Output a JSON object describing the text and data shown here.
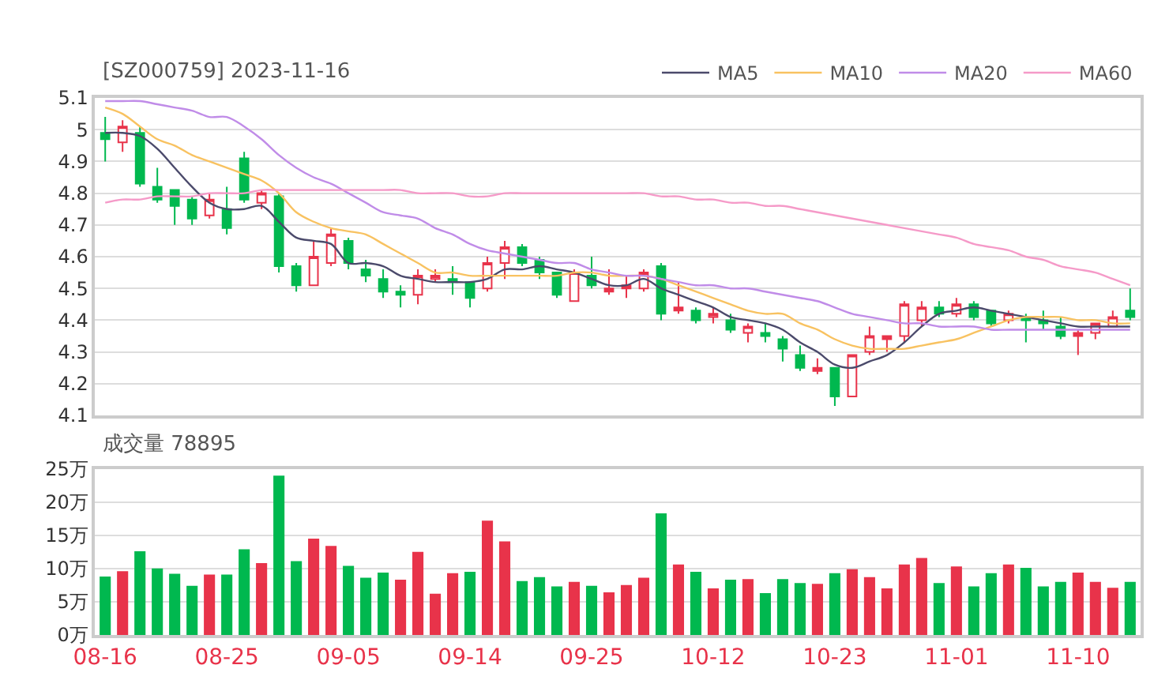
{
  "chart_data": [
    {
      "type": "candlestick",
      "title": "[SZ000759] 2023-11-16",
      "legend": "top right",
      "grid": "y",
      "tick_labels": "y",
      "categories": [
        null,
        null,
        null,
        null,
        null,
        null,
        null,
        null,
        null,
        null,
        null,
        null,
        null,
        null,
        null,
        null,
        null,
        null,
        null,
        null,
        null,
        null,
        null,
        null,
        null,
        null,
        null,
        null,
        null,
        null,
        null,
        null,
        null,
        null,
        null,
        null,
        null,
        null,
        null,
        null,
        null,
        null,
        null,
        null,
        null,
        null,
        null,
        null,
        null,
        null,
        null,
        null,
        null,
        null,
        null,
        null,
        null,
        null,
        null,
        null
      ],
      "ylim": [
        4.1,
        5.1
      ],
      "yticks": [
        4.1,
        4.2,
        4.3,
        4.4,
        4.5,
        4.6,
        4.7,
        4.8,
        4.9,
        5,
        5.1
      ],
      "ohlc": [
        [
          4.99,
          5.04,
          4.9,
          4.97
        ],
        [
          4.96,
          5.03,
          4.93,
          5.01
        ],
        [
          4.99,
          5.01,
          4.82,
          4.83
        ],
        [
          4.82,
          4.88,
          4.77,
          4.78
        ],
        [
          4.81,
          4.81,
          4.7,
          4.76
        ],
        [
          4.78,
          4.79,
          4.7,
          4.72
        ],
        [
          4.73,
          4.8,
          4.72,
          4.78
        ],
        [
          4.75,
          4.82,
          4.67,
          4.69
        ],
        [
          4.91,
          4.93,
          4.77,
          4.78
        ],
        [
          4.77,
          4.81,
          4.75,
          4.8
        ],
        [
          4.79,
          4.8,
          4.55,
          4.57
        ],
        [
          4.57,
          4.58,
          4.49,
          4.51
        ],
        [
          4.51,
          4.65,
          4.51,
          4.6
        ],
        [
          4.58,
          4.69,
          4.57,
          4.67
        ],
        [
          4.65,
          4.66,
          4.56,
          4.58
        ],
        [
          4.56,
          4.59,
          4.52,
          4.54
        ],
        [
          4.53,
          4.56,
          4.47,
          4.49
        ],
        [
          4.49,
          4.51,
          4.44,
          4.48
        ],
        [
          4.48,
          4.56,
          4.45,
          4.54
        ],
        [
          4.53,
          4.56,
          4.52,
          4.54
        ],
        [
          4.53,
          4.57,
          4.48,
          4.52
        ],
        [
          4.52,
          4.52,
          4.44,
          4.47
        ],
        [
          4.5,
          4.6,
          4.49,
          4.58
        ],
        [
          4.58,
          4.65,
          4.53,
          4.63
        ],
        [
          4.63,
          4.64,
          4.57,
          4.58
        ],
        [
          4.59,
          4.6,
          4.53,
          4.55
        ],
        [
          4.55,
          4.55,
          4.47,
          4.48
        ],
        [
          4.46,
          4.56,
          4.46,
          4.55
        ],
        [
          4.54,
          4.6,
          4.5,
          4.51
        ],
        [
          4.49,
          4.56,
          4.48,
          4.5
        ],
        [
          4.5,
          4.54,
          4.47,
          4.51
        ],
        [
          4.5,
          4.56,
          4.49,
          4.55
        ],
        [
          4.57,
          4.58,
          4.4,
          4.42
        ],
        [
          4.43,
          4.52,
          4.42,
          4.44
        ],
        [
          4.43,
          4.44,
          4.39,
          4.4
        ],
        [
          4.41,
          4.44,
          4.39,
          4.42
        ],
        [
          4.4,
          4.42,
          4.36,
          4.37
        ],
        [
          4.36,
          4.39,
          4.33,
          4.38
        ],
        [
          4.36,
          4.39,
          4.33,
          4.35
        ],
        [
          4.34,
          4.35,
          4.27,
          4.31
        ],
        [
          4.29,
          4.32,
          4.24,
          4.25
        ],
        [
          4.24,
          4.28,
          4.23,
          4.25
        ],
        [
          4.25,
          4.25,
          4.13,
          4.16
        ],
        [
          4.16,
          4.29,
          4.16,
          4.29
        ],
        [
          4.3,
          4.38,
          4.29,
          4.35
        ],
        [
          4.34,
          4.35,
          4.3,
          4.35
        ],
        [
          4.35,
          4.46,
          4.33,
          4.45
        ],
        [
          4.4,
          4.46,
          4.38,
          4.44
        ],
        [
          4.44,
          4.46,
          4.41,
          4.42
        ],
        [
          4.42,
          4.47,
          4.41,
          4.45
        ],
        [
          4.45,
          4.46,
          4.4,
          4.41
        ],
        [
          4.43,
          4.43,
          4.38,
          4.39
        ],
        [
          4.4,
          4.43,
          4.39,
          4.42
        ],
        [
          4.41,
          4.42,
          4.33,
          4.4
        ],
        [
          4.4,
          4.43,
          4.37,
          4.39
        ],
        [
          4.38,
          4.41,
          4.34,
          4.35
        ],
        [
          4.35,
          4.37,
          4.29,
          4.36
        ],
        [
          4.36,
          4.39,
          4.34,
          4.39
        ],
        [
          4.38,
          4.43,
          4.38,
          4.41
        ],
        [
          4.43,
          4.5,
          4.4,
          4.41
        ]
      ],
      "series": [
        {
          "name": "MA5",
          "type": "line",
          "color": "#4b4a6b",
          "values": [
            4.99,
            4.99,
            4.98,
            4.94,
            4.88,
            4.82,
            4.77,
            4.75,
            4.75,
            4.76,
            4.71,
            4.66,
            4.65,
            4.64,
            4.58,
            4.58,
            4.57,
            4.54,
            4.53,
            4.52,
            4.52,
            4.52,
            4.53,
            4.56,
            4.56,
            4.57,
            4.56,
            4.55,
            4.53,
            4.51,
            4.51,
            4.53,
            4.5,
            4.48,
            4.46,
            4.44,
            4.41,
            4.4,
            4.39,
            4.37,
            4.33,
            4.3,
            4.26,
            4.25,
            4.27,
            4.29,
            4.33,
            4.38,
            4.42,
            4.43,
            4.44,
            4.43,
            4.42,
            4.41,
            4.4,
            4.39,
            4.38,
            4.38,
            4.38,
            4.38
          ]
        },
        {
          "name": "MA10",
          "type": "line",
          "color": "#f8c261",
          "values": [
            5.07,
            5.05,
            5.01,
            4.97,
            4.95,
            4.92,
            4.9,
            4.88,
            4.86,
            4.84,
            4.8,
            4.74,
            4.71,
            4.69,
            4.68,
            4.67,
            4.64,
            4.61,
            4.58,
            4.55,
            4.55,
            4.54,
            4.54,
            4.54,
            4.54,
            4.54,
            4.54,
            4.55,
            4.55,
            4.54,
            4.54,
            4.54,
            4.53,
            4.51,
            4.49,
            4.47,
            4.45,
            4.43,
            4.42,
            4.42,
            4.39,
            4.37,
            4.34,
            4.32,
            4.31,
            4.31,
            4.31,
            4.32,
            4.33,
            4.34,
            4.36,
            4.38,
            4.4,
            4.41,
            4.41,
            4.41,
            4.4,
            4.4,
            4.39,
            4.39
          ]
        },
        {
          "name": "MA20",
          "type": "line",
          "color": "#c08ce8",
          "values": [
            5.09,
            5.09,
            5.09,
            5.08,
            5.07,
            5.06,
            5.04,
            5.04,
            5.01,
            4.97,
            4.92,
            4.88,
            4.85,
            4.83,
            4.8,
            4.77,
            4.74,
            4.73,
            4.72,
            4.69,
            4.67,
            4.64,
            4.62,
            4.61,
            4.6,
            4.59,
            4.58,
            4.58,
            4.56,
            4.55,
            4.54,
            4.54,
            4.53,
            4.52,
            4.51,
            4.51,
            4.5,
            4.5,
            4.49,
            4.48,
            4.47,
            4.46,
            4.44,
            4.42,
            4.41,
            4.4,
            4.39,
            4.39,
            4.38,
            4.38,
            4.38,
            4.37,
            4.37,
            4.37,
            4.37,
            4.37,
            4.37,
            4.37,
            4.37,
            4.37
          ]
        },
        {
          "name": "MA60",
          "type": "line",
          "color": "#f59ac8",
          "values": [
            4.77,
            4.78,
            4.78,
            4.79,
            4.79,
            4.79,
            4.8,
            4.8,
            4.8,
            4.81,
            4.81,
            4.81,
            4.81,
            4.81,
            4.81,
            4.81,
            4.81,
            4.81,
            4.8,
            4.8,
            4.8,
            4.79,
            4.79,
            4.8,
            4.8,
            4.8,
            4.8,
            4.8,
            4.8,
            4.8,
            4.8,
            4.8,
            4.79,
            4.79,
            4.78,
            4.78,
            4.77,
            4.77,
            4.76,
            4.76,
            4.75,
            4.74,
            4.73,
            4.72,
            4.71,
            4.7,
            4.69,
            4.68,
            4.67,
            4.66,
            4.64,
            4.63,
            4.62,
            4.6,
            4.59,
            4.57,
            4.56,
            4.55,
            4.53,
            4.51
          ]
        }
      ]
    },
    {
      "type": "bar",
      "title": "成交量 78895",
      "grid": "y",
      "categories": [
        "08-16",
        null,
        null,
        null,
        null,
        null,
        null,
        "08-25",
        null,
        null,
        null,
        null,
        null,
        null,
        "09-05",
        null,
        null,
        null,
        null,
        null,
        null,
        "09-14",
        null,
        null,
        null,
        null,
        null,
        null,
        "09-25",
        null,
        null,
        null,
        null,
        null,
        null,
        "10-12",
        null,
        null,
        null,
        null,
        null,
        null,
        "10-23",
        null,
        null,
        null,
        null,
        null,
        null,
        "11-01",
        null,
        null,
        null,
        null,
        null,
        null,
        "11-10",
        null,
        null,
        null
      ],
      "ylim": [
        0,
        25
      ],
      "yticks": [
        {
          "value": 0,
          "label": "0万"
        },
        {
          "value": 5,
          "label": "5万"
        },
        {
          "value": 10,
          "label": "10万"
        },
        {
          "value": 15,
          "label": "15万"
        },
        {
          "value": 20,
          "label": "20万"
        },
        {
          "value": 25,
          "label": "25万"
        }
      ],
      "values": [
        8.7,
        9.5,
        12.5,
        9.9,
        9.1,
        7.3,
        9.0,
        9.0,
        12.8,
        10.7,
        23.9,
        11.0,
        14.4,
        13.3,
        10.3,
        8.5,
        9.3,
        8.2,
        12.4,
        6.1,
        9.2,
        9.4,
        17.1,
        14.0,
        8.0,
        8.6,
        7.2,
        7.9,
        7.3,
        6.3,
        7.4,
        8.5,
        18.2,
        10.5,
        9.4,
        6.9,
        8.2,
        8.3,
        6.2,
        8.3,
        7.7,
        7.6,
        9.2,
        9.8,
        8.6,
        6.9,
        10.5,
        11.5,
        7.7,
        10.2,
        7.2,
        9.2,
        10.5,
        10.0,
        7.2,
        7.9,
        9.3,
        7.9,
        7.0,
        7.9
      ],
      "colors": [
        "#00b84f",
        "#e8334a",
        "#00b84f",
        "#00b84f",
        "#00b84f",
        "#00b84f",
        "#e8334a",
        "#00b84f",
        "#00b84f",
        "#e8334a",
        "#00b84f",
        "#00b84f",
        "#e8334a",
        "#e8334a",
        "#00b84f",
        "#00b84f",
        "#00b84f",
        "#e8334a",
        "#e8334a",
        "#e8334a",
        "#e8334a",
        "#00b84f",
        "#e8334a",
        "#e8334a",
        "#00b84f",
        "#00b84f",
        "#00b84f",
        "#e8334a",
        "#00b84f",
        "#e8334a",
        "#e8334a",
        "#e8334a",
        "#00b84f",
        "#e8334a",
        "#00b84f",
        "#e8334a",
        "#00b84f",
        "#e8334a",
        "#00b84f",
        "#00b84f",
        "#00b84f",
        "#e8334a",
        "#00b84f",
        "#e8334a",
        "#e8334a",
        "#e8334a",
        "#e8334a",
        "#e8334a",
        "#00b84f",
        "#e8334a",
        "#00b84f",
        "#00b84f",
        "#e8334a",
        "#00b84f",
        "#00b84f",
        "#00b84f",
        "#e8334a",
        "#e8334a",
        "#e8334a",
        "#00b84f"
      ]
    }
  ]
}
